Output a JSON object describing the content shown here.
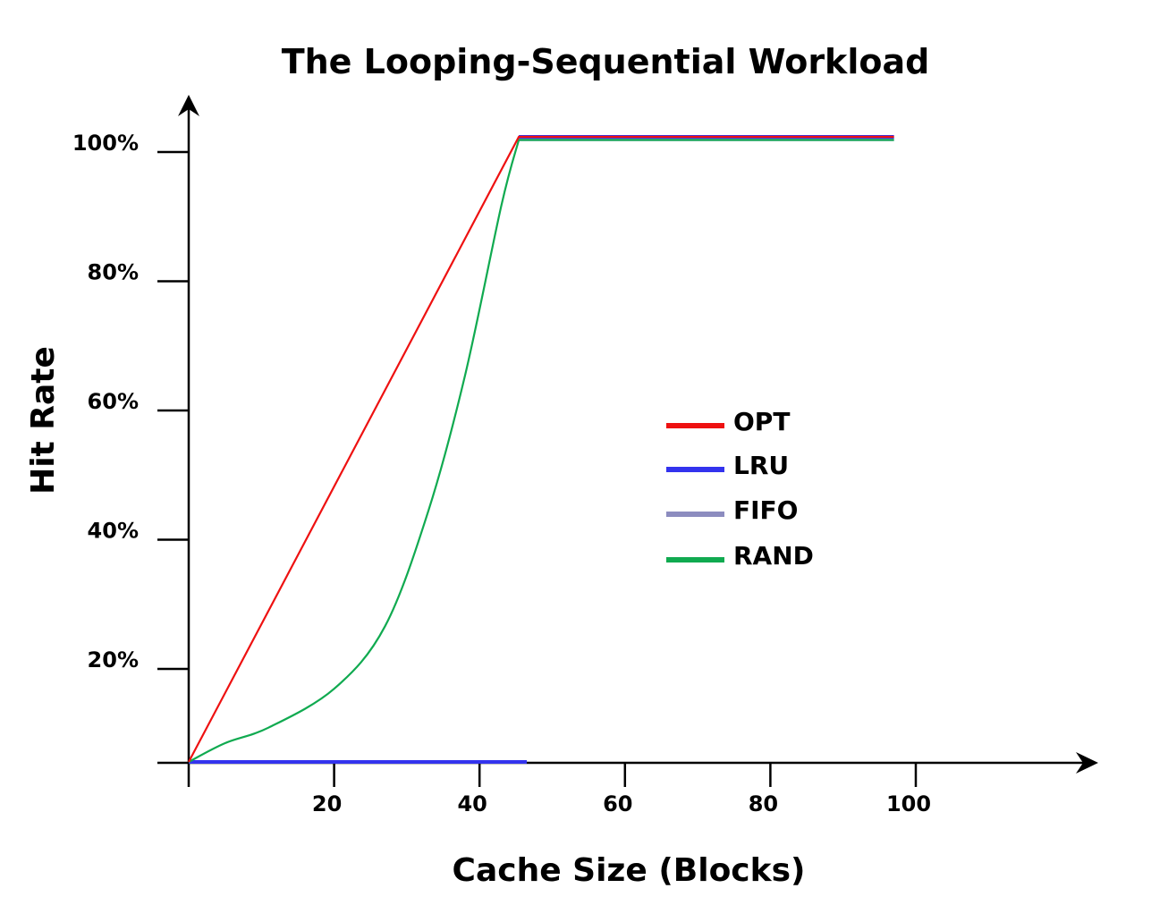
{
  "chart_data": {
    "type": "line",
    "title": "The Looping-Sequential Workload",
    "xlabel": "Cache Size (Blocks)",
    "ylabel": "Hit Rate",
    "xlim": [
      0,
      125
    ],
    "ylim": [
      0,
      100
    ],
    "x_ticks": [
      20,
      40,
      60,
      80,
      100
    ],
    "x_tick_labels": [
      "20",
      "40",
      "60",
      "80",
      "100"
    ],
    "y_ticks": [
      20,
      40,
      60,
      80,
      100
    ],
    "y_tick_labels": [
      "20%",
      "40%",
      "60%",
      "80%",
      "100%"
    ],
    "grid": false,
    "legend_position": "center-right",
    "series": [
      {
        "name": "OPT",
        "color": "#ee1111",
        "x": [
          0,
          45.4,
          97
        ],
        "y": [
          0,
          100,
          100
        ]
      },
      {
        "name": "LRU",
        "color": "#3333ee",
        "x": [
          0,
          46.5,
          45.4,
          97
        ],
        "y": [
          0,
          0,
          100,
          100
        ],
        "segments": [
          [
            0,
            1
          ],
          [
            2,
            3
          ]
        ]
      },
      {
        "name": "FIFO",
        "color": "#8c8cbf",
        "x": [
          0,
          46,
          45.4,
          97
        ],
        "y": [
          0,
          0,
          99.6,
          99.6
        ],
        "segments": [
          [
            0,
            1
          ],
          [
            2,
            3
          ]
        ]
      },
      {
        "name": "RAND",
        "color": "#10aa50",
        "x": [
          0,
          5,
          11,
          20,
          27,
          33,
          38,
          43,
          45.4,
          97
        ],
        "y": [
          0,
          3,
          5.5,
          11.7,
          21.7,
          40.3,
          61.8,
          89,
          99.5,
          99.5
        ]
      }
    ]
  }
}
